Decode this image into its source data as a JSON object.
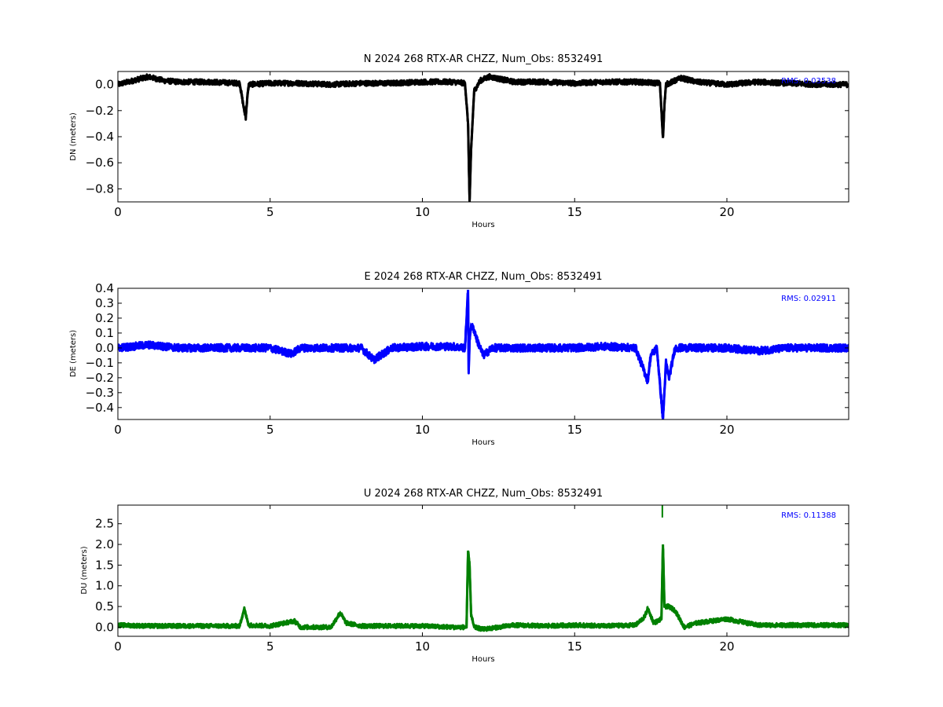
{
  "chart_data": [
    {
      "type": "line",
      "title": "N 2024 268 RTX-AR  CHZZ, Num_Obs: 8532491",
      "xlabel": "Hours",
      "ylabel": "DN (meters)",
      "xlim": [
        0,
        24
      ],
      "ylim": [
        -0.9,
        0.1
      ],
      "xticks": [
        0,
        5,
        10,
        15,
        20
      ],
      "yticks": [
        0.0,
        -0.2,
        -0.4,
        -0.6,
        -0.8
      ],
      "ytick_labels": [
        "0.0",
        "−0.2",
        "−0.4",
        "−0.6",
        "−0.8"
      ],
      "grid": false,
      "rms_label": "RMS:  0.03538",
      "series": [
        {
          "color": "#000000",
          "baseline": 0.01,
          "noise": 0.02,
          "x": [
            0,
            0.5,
            1,
            1.5,
            2,
            3,
            4,
            4.15,
            4.2,
            4.25,
            4.3,
            5,
            6,
            7,
            8,
            9,
            10,
            11,
            11.4,
            11.5,
            11.55,
            11.6,
            11.7,
            11.9,
            12.2,
            13,
            14,
            15,
            16,
            17,
            17.8,
            17.85,
            17.9,
            17.95,
            18.0,
            18.5,
            19,
            20,
            21,
            22,
            23,
            24
          ],
          "y": [
            0.0,
            0.03,
            0.06,
            0.03,
            0.02,
            0.02,
            0.01,
            -0.2,
            -0.25,
            -0.1,
            0.0,
            0.01,
            0.01,
            0.0,
            0.01,
            0.01,
            0.02,
            0.02,
            0.01,
            -0.3,
            -0.9,
            -0.5,
            -0.05,
            0.03,
            0.06,
            0.02,
            0.02,
            0.01,
            0.02,
            0.02,
            0.01,
            -0.2,
            -0.41,
            -0.15,
            0.0,
            0.05,
            0.02,
            0.0,
            0.02,
            0.01,
            0.0,
            0.0
          ]
        }
      ]
    },
    {
      "type": "line",
      "title": "E 2024 268 RTX-AR  CHZZ, Num_Obs: 8532491",
      "xlabel": "Hours",
      "ylabel": "DE (meters)",
      "xlim": [
        0,
        24
      ],
      "ylim": [
        -0.48,
        0.4
      ],
      "xticks": [
        0,
        5,
        10,
        15,
        20
      ],
      "yticks": [
        0.4,
        0.3,
        0.2,
        0.1,
        0.0,
        -0.1,
        -0.2,
        -0.3,
        -0.4
      ],
      "ytick_labels": [
        "0.4",
        "0.3",
        "0.2",
        "0.1",
        "0.0",
        "−0.1",
        "−0.2",
        "−0.3",
        "−0.4"
      ],
      "grid": false,
      "rms_label": "RMS:  0.02911",
      "series": [
        {
          "color": "#0000ff",
          "baseline": 0.0,
          "noise": 0.025,
          "x": [
            0,
            1,
            2,
            3,
            4,
            5,
            5.7,
            6,
            7,
            8,
            8.4,
            9,
            10,
            11,
            11.4,
            11.5,
            11.52,
            11.55,
            11.6,
            11.7,
            11.8,
            12.0,
            12.3,
            13,
            14,
            15,
            16,
            17,
            17.4,
            17.5,
            17.7,
            17.9,
            18.0,
            18.1,
            18.3,
            19,
            20,
            21,
            22,
            23,
            24
          ],
          "y": [
            0.0,
            0.02,
            0.0,
            0.0,
            0.0,
            0.0,
            -0.04,
            0.0,
            0.0,
            0.0,
            -0.08,
            0.0,
            0.01,
            0.01,
            0.0,
            0.39,
            -0.15,
            0.05,
            0.15,
            0.12,
            0.05,
            -0.05,
            0.0,
            0.0,
            0.0,
            0.0,
            0.01,
            0.0,
            -0.22,
            -0.05,
            0.0,
            -0.48,
            -0.1,
            -0.2,
            0.0,
            0.0,
            0.0,
            -0.02,
            0.0,
            0.0,
            0.0
          ]
        }
      ]
    },
    {
      "type": "line",
      "title": "U 2024 268 RTX-AR  CHZZ, Num_Obs: 8532491",
      "xlabel": "Hours",
      "ylabel": "DU (meters)",
      "xlim": [
        0,
        24
      ],
      "ylim": [
        -0.22,
        2.95
      ],
      "xticks": [
        0,
        5,
        10,
        15,
        20
      ],
      "yticks": [
        2.5,
        2.0,
        1.5,
        1.0,
        0.5,
        0.0
      ],
      "ytick_labels": [
        "2.5",
        "2.0",
        "1.5",
        "1.0",
        "0.5",
        "0.0"
      ],
      "grid": false,
      "rms_label": "RMS:  0.11388",
      "series": [
        {
          "color": "#008000",
          "baseline": 0.03,
          "noise": 0.05,
          "x": [
            0,
            1,
            2,
            3,
            4,
            4.15,
            4.2,
            4.3,
            5,
            5.8,
            6,
            7,
            7.3,
            7.5,
            8,
            9,
            10,
            11,
            11.45,
            11.5,
            11.55,
            11.6,
            11.7,
            12,
            13,
            14,
            15,
            16,
            17,
            17.3,
            17.4,
            17.6,
            17.85,
            17.9,
            17.95,
            18.1,
            18.3,
            18.6,
            19,
            20,
            21,
            22,
            23,
            24
          ],
          "y": [
            0.05,
            0.03,
            0.03,
            0.03,
            0.03,
            0.45,
            0.3,
            0.05,
            0.03,
            0.15,
            0.0,
            0.0,
            0.35,
            0.1,
            0.03,
            0.03,
            0.03,
            0.0,
            0.0,
            1.85,
            1.5,
            0.3,
            0.0,
            -0.05,
            0.05,
            0.03,
            0.05,
            0.03,
            0.05,
            0.25,
            0.45,
            0.1,
            0.2,
            2.0,
            0.5,
            0.5,
            0.4,
            0.0,
            0.1,
            0.2,
            0.05,
            0.05,
            0.05,
            0.05
          ]
        }
      ],
      "spike_x": 17.88,
      "spike_range": [
        2.65,
        2.95
      ]
    }
  ]
}
